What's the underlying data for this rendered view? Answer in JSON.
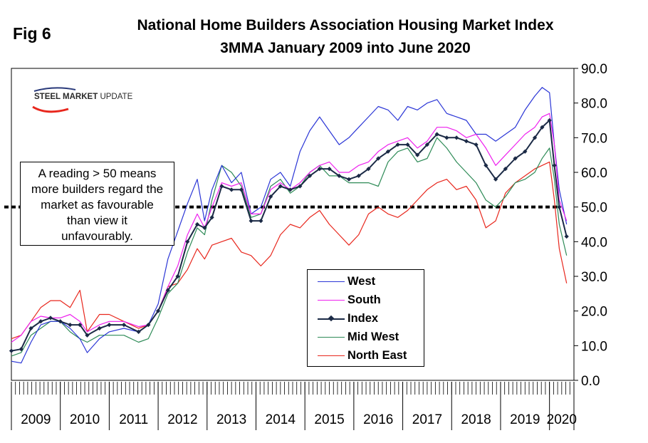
{
  "figure_label": "Fig 6",
  "title_line1": "National Home Builders Association Housing Market Index",
  "title_line2": "3MMA January 2009 into June 2020",
  "logo": {
    "part1": "STEEL MARKET",
    "part2": "UPDATE"
  },
  "annotation": [
    "A reading > 50 means",
    "more builders regard the",
    "market as favourable",
    "than view it",
    "unfavourably."
  ],
  "chart_data": {
    "type": "line",
    "title": "National Home Builders Association Housing Market Index 3MMA January 2009 into June 2020",
    "xlabel": "",
    "ylabel": "",
    "ylim": [
      0,
      90
    ],
    "yticks": [
      "0.0",
      "10.0",
      "20.0",
      "30.0",
      "40.0",
      "50.0",
      "60.0",
      "70.0",
      "80.0",
      "90.0"
    ],
    "years": [
      "2009",
      "2010",
      "2011",
      "2012",
      "2013",
      "2014",
      "2015",
      "2016",
      "2017",
      "2018",
      "2019",
      "2020"
    ],
    "reference_line": 50,
    "x_start": 2009.0,
    "x_end": 2020.5,
    "series": [
      {
        "name": "West",
        "color": "#2b36d6",
        "points": [
          [
            2009.0,
            5.5
          ],
          [
            2009.2,
            5
          ],
          [
            2009.4,
            11
          ],
          [
            2009.6,
            16
          ],
          [
            2009.8,
            17
          ],
          [
            2010.0,
            17
          ],
          [
            2010.2,
            15
          ],
          [
            2010.4,
            12
          ],
          [
            2010.55,
            8
          ],
          [
            2010.8,
            12
          ],
          [
            2011.0,
            14
          ],
          [
            2011.3,
            15
          ],
          [
            2011.6,
            14
          ],
          [
            2011.8,
            16
          ],
          [
            2012.0,
            22
          ],
          [
            2012.2,
            35
          ],
          [
            2012.4,
            43
          ],
          [
            2012.6,
            51
          ],
          [
            2012.8,
            58
          ],
          [
            2012.95,
            46
          ],
          [
            2013.1,
            55
          ],
          [
            2013.3,
            62
          ],
          [
            2013.5,
            57
          ],
          [
            2013.7,
            60
          ],
          [
            2013.9,
            48
          ],
          [
            2014.1,
            50
          ],
          [
            2014.3,
            58
          ],
          [
            2014.5,
            60
          ],
          [
            2014.7,
            56
          ],
          [
            2014.9,
            66
          ],
          [
            2015.1,
            72
          ],
          [
            2015.3,
            76
          ],
          [
            2015.5,
            72
          ],
          [
            2015.7,
            68
          ],
          [
            2015.9,
            70
          ],
          [
            2016.1,
            73
          ],
          [
            2016.3,
            76
          ],
          [
            2016.5,
            79
          ],
          [
            2016.7,
            78
          ],
          [
            2016.9,
            75
          ],
          [
            2017.1,
            79
          ],
          [
            2017.3,
            78
          ],
          [
            2017.5,
            80
          ],
          [
            2017.7,
            81
          ],
          [
            2017.9,
            77
          ],
          [
            2018.1,
            76
          ],
          [
            2018.3,
            75
          ],
          [
            2018.5,
            71
          ],
          [
            2018.7,
            71
          ],
          [
            2018.9,
            69
          ],
          [
            2019.1,
            71
          ],
          [
            2019.3,
            73
          ],
          [
            2019.5,
            78
          ],
          [
            2019.7,
            82
          ],
          [
            2019.85,
            84.5
          ],
          [
            2020.0,
            83
          ],
          [
            2020.1,
            68
          ],
          [
            2020.2,
            55
          ],
          [
            2020.35,
            45
          ]
        ]
      },
      {
        "name": "South",
        "color": "#ee20ee",
        "points": [
          [
            2009.0,
            11
          ],
          [
            2009.2,
            13
          ],
          [
            2009.4,
            17
          ],
          [
            2009.6,
            18.5
          ],
          [
            2009.8,
            18
          ],
          [
            2010.0,
            18
          ],
          [
            2010.2,
            19
          ],
          [
            2010.4,
            17
          ],
          [
            2010.55,
            14
          ],
          [
            2010.8,
            16
          ],
          [
            2011.0,
            17
          ],
          [
            2011.3,
            17
          ],
          [
            2011.6,
            15.5
          ],
          [
            2011.8,
            16
          ],
          [
            2012.0,
            20
          ],
          [
            2012.2,
            27
          ],
          [
            2012.4,
            33
          ],
          [
            2012.6,
            42
          ],
          [
            2012.8,
            48
          ],
          [
            2012.95,
            44
          ],
          [
            2013.1,
            50
          ],
          [
            2013.3,
            57
          ],
          [
            2013.5,
            56
          ],
          [
            2013.7,
            57
          ],
          [
            2013.9,
            48
          ],
          [
            2014.1,
            48
          ],
          [
            2014.3,
            55
          ],
          [
            2014.5,
            57
          ],
          [
            2014.7,
            55
          ],
          [
            2014.9,
            57
          ],
          [
            2015.1,
            60
          ],
          [
            2015.3,
            62
          ],
          [
            2015.5,
            63
          ],
          [
            2015.7,
            60
          ],
          [
            2015.9,
            60
          ],
          [
            2016.1,
            62
          ],
          [
            2016.3,
            63
          ],
          [
            2016.5,
            66
          ],
          [
            2016.7,
            68
          ],
          [
            2016.9,
            69
          ],
          [
            2017.1,
            70
          ],
          [
            2017.3,
            67
          ],
          [
            2017.5,
            69
          ],
          [
            2017.7,
            73
          ],
          [
            2017.9,
            73
          ],
          [
            2018.1,
            72
          ],
          [
            2018.3,
            70
          ],
          [
            2018.5,
            71
          ],
          [
            2018.7,
            67
          ],
          [
            2018.9,
            62
          ],
          [
            2019.1,
            65
          ],
          [
            2019.3,
            68
          ],
          [
            2019.5,
            71
          ],
          [
            2019.7,
            73
          ],
          [
            2019.85,
            76
          ],
          [
            2020.0,
            77
          ],
          [
            2020.1,
            68
          ],
          [
            2020.2,
            52
          ],
          [
            2020.35,
            46
          ]
        ]
      },
      {
        "name": "Index",
        "color": "#1b2a46",
        "markers": true,
        "points": [
          [
            2009.0,
            8.5
          ],
          [
            2009.2,
            9
          ],
          [
            2009.4,
            15
          ],
          [
            2009.6,
            17
          ],
          [
            2009.8,
            18
          ],
          [
            2010.0,
            17
          ],
          [
            2010.2,
            16
          ],
          [
            2010.4,
            16
          ],
          [
            2010.55,
            13
          ],
          [
            2010.8,
            15
          ],
          [
            2011.0,
            16
          ],
          [
            2011.3,
            16
          ],
          [
            2011.6,
            14
          ],
          [
            2011.8,
            16
          ],
          [
            2012.0,
            20
          ],
          [
            2012.2,
            26
          ],
          [
            2012.4,
            30
          ],
          [
            2012.6,
            40
          ],
          [
            2012.8,
            45
          ],
          [
            2012.95,
            44
          ],
          [
            2013.1,
            47
          ],
          [
            2013.3,
            56
          ],
          [
            2013.5,
            55
          ],
          [
            2013.7,
            55
          ],
          [
            2013.9,
            46
          ],
          [
            2014.1,
            46
          ],
          [
            2014.3,
            53
          ],
          [
            2014.5,
            56
          ],
          [
            2014.7,
            55
          ],
          [
            2014.9,
            56
          ],
          [
            2015.1,
            59
          ],
          [
            2015.3,
            61
          ],
          [
            2015.5,
            61
          ],
          [
            2015.7,
            59
          ],
          [
            2015.9,
            58
          ],
          [
            2016.1,
            59
          ],
          [
            2016.3,
            61
          ],
          [
            2016.5,
            64
          ],
          [
            2016.7,
            66
          ],
          [
            2016.9,
            68
          ],
          [
            2017.1,
            68
          ],
          [
            2017.3,
            65
          ],
          [
            2017.5,
            68
          ],
          [
            2017.7,
            71
          ],
          [
            2017.9,
            70
          ],
          [
            2018.1,
            70
          ],
          [
            2018.3,
            69
          ],
          [
            2018.5,
            68
          ],
          [
            2018.7,
            62
          ],
          [
            2018.9,
            58
          ],
          [
            2019.1,
            61
          ],
          [
            2019.3,
            64
          ],
          [
            2019.5,
            66
          ],
          [
            2019.7,
            70
          ],
          [
            2019.85,
            73
          ],
          [
            2020.0,
            75
          ],
          [
            2020.1,
            62
          ],
          [
            2020.2,
            50
          ],
          [
            2020.35,
            41.5
          ]
        ]
      },
      {
        "name": "Mid West",
        "color": "#2e8b57",
        "points": [
          [
            2009.0,
            7
          ],
          [
            2009.2,
            8
          ],
          [
            2009.4,
            13
          ],
          [
            2009.6,
            15
          ],
          [
            2009.8,
            17
          ],
          [
            2010.0,
            17
          ],
          [
            2010.2,
            14
          ],
          [
            2010.4,
            12
          ],
          [
            2010.55,
            11
          ],
          [
            2010.8,
            13
          ],
          [
            2011.0,
            13
          ],
          [
            2011.3,
            13
          ],
          [
            2011.6,
            11
          ],
          [
            2011.8,
            12
          ],
          [
            2012.0,
            18
          ],
          [
            2012.2,
            25
          ],
          [
            2012.4,
            28
          ],
          [
            2012.6,
            37
          ],
          [
            2012.8,
            44
          ],
          [
            2012.95,
            42
          ],
          [
            2013.1,
            52
          ],
          [
            2013.3,
            62
          ],
          [
            2013.5,
            60
          ],
          [
            2013.7,
            56
          ],
          [
            2013.9,
            47
          ],
          [
            2014.1,
            48
          ],
          [
            2014.3,
            56
          ],
          [
            2014.5,
            58
          ],
          [
            2014.7,
            54
          ],
          [
            2014.9,
            56
          ],
          [
            2015.1,
            60
          ],
          [
            2015.3,
            62
          ],
          [
            2015.5,
            59
          ],
          [
            2015.7,
            59
          ],
          [
            2015.9,
            57
          ],
          [
            2016.1,
            57
          ],
          [
            2016.3,
            57
          ],
          [
            2016.5,
            56
          ],
          [
            2016.7,
            63
          ],
          [
            2016.9,
            66
          ],
          [
            2017.1,
            67
          ],
          [
            2017.3,
            63
          ],
          [
            2017.5,
            64
          ],
          [
            2017.7,
            70
          ],
          [
            2017.9,
            67
          ],
          [
            2018.1,
            63
          ],
          [
            2018.3,
            60
          ],
          [
            2018.5,
            57
          ],
          [
            2018.7,
            52
          ],
          [
            2018.9,
            50
          ],
          [
            2019.1,
            53
          ],
          [
            2019.3,
            57
          ],
          [
            2019.5,
            58
          ],
          [
            2019.7,
            60
          ],
          [
            2019.85,
            64
          ],
          [
            2020.0,
            67
          ],
          [
            2020.1,
            58
          ],
          [
            2020.2,
            45
          ],
          [
            2020.35,
            36
          ]
        ]
      },
      {
        "name": "North East",
        "color": "#e8271d",
        "points": [
          [
            2009.0,
            12
          ],
          [
            2009.2,
            13
          ],
          [
            2009.4,
            17
          ],
          [
            2009.6,
            21
          ],
          [
            2009.8,
            23
          ],
          [
            2010.0,
            23
          ],
          [
            2010.2,
            21
          ],
          [
            2010.4,
            26
          ],
          [
            2010.55,
            14
          ],
          [
            2010.8,
            19
          ],
          [
            2011.0,
            19
          ],
          [
            2011.3,
            17
          ],
          [
            2011.6,
            15
          ],
          [
            2011.8,
            16
          ],
          [
            2012.0,
            20
          ],
          [
            2012.2,
            27
          ],
          [
            2012.4,
            28
          ],
          [
            2012.6,
            32
          ],
          [
            2012.8,
            38
          ],
          [
            2012.95,
            35
          ],
          [
            2013.1,
            39
          ],
          [
            2013.3,
            40
          ],
          [
            2013.5,
            41
          ],
          [
            2013.7,
            37
          ],
          [
            2013.9,
            36
          ],
          [
            2014.1,
            33
          ],
          [
            2014.3,
            36
          ],
          [
            2014.5,
            42
          ],
          [
            2014.7,
            45
          ],
          [
            2014.9,
            44
          ],
          [
            2015.1,
            47
          ],
          [
            2015.3,
            49
          ],
          [
            2015.5,
            45
          ],
          [
            2015.7,
            42
          ],
          [
            2015.9,
            39
          ],
          [
            2016.1,
            42
          ],
          [
            2016.3,
            48
          ],
          [
            2016.5,
            50
          ],
          [
            2016.7,
            48
          ],
          [
            2016.9,
            47
          ],
          [
            2017.1,
            49
          ],
          [
            2017.3,
            52
          ],
          [
            2017.5,
            55
          ],
          [
            2017.7,
            57
          ],
          [
            2017.9,
            58
          ],
          [
            2018.1,
            55
          ],
          [
            2018.3,
            56
          ],
          [
            2018.5,
            52
          ],
          [
            2018.7,
            44
          ],
          [
            2018.9,
            46
          ],
          [
            2019.1,
            54
          ],
          [
            2019.3,
            57
          ],
          [
            2019.5,
            59
          ],
          [
            2019.7,
            61
          ],
          [
            2019.85,
            62
          ],
          [
            2020.0,
            63
          ],
          [
            2020.1,
            52
          ],
          [
            2020.2,
            38
          ],
          [
            2020.35,
            28
          ]
        ]
      }
    ]
  }
}
